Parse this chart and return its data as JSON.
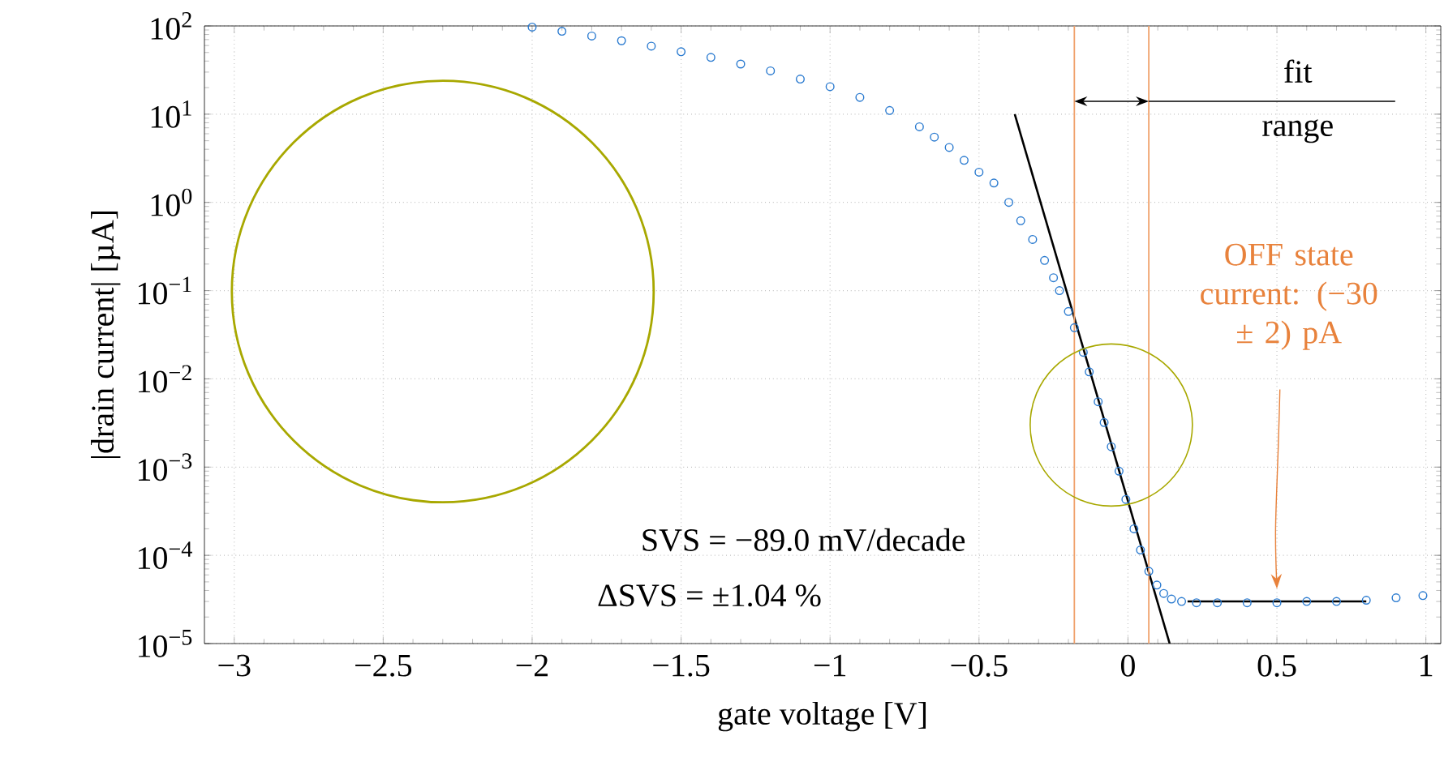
{
  "chart_data": {
    "type": "scatter",
    "xlabel": "gate voltage [V]",
    "ylabel": "|drain current| [µA]",
    "log": "y",
    "grid": true,
    "xlim": [
      -3.1,
      1.05
    ],
    "ylim": [
      1e-05,
      100
    ],
    "xticks": [
      {
        "value": -3,
        "label": "−3"
      },
      {
        "value": -2.5,
        "label": "−2.5"
      },
      {
        "value": -2,
        "label": "−2"
      },
      {
        "value": -1.5,
        "label": "−1.5"
      },
      {
        "value": -1,
        "label": "−1"
      },
      {
        "value": -0.5,
        "label": "−0.5"
      },
      0,
      0.5,
      1
    ],
    "yticks": [
      {
        "value": 1e-05,
        "label": "10$^{−5}$"
      },
      {
        "value": 0.0001,
        "label": "10$^{−4}$"
      },
      {
        "value": 0.001,
        "label": "10$^{−3}$"
      },
      {
        "value": 0.01,
        "label": "10$^{−2}$"
      },
      {
        "value": 0.1,
        "label": "10$^{−1}$"
      },
      {
        "value": 1,
        "label": "10$^{0}$"
      },
      {
        "value": 10,
        "label": "10$^{1}$"
      },
      {
        "value": 100,
        "label": "10$^{2}$"
      }
    ],
    "series": [
      {
        "marker": "circle",
        "color": "#2b7bd0",
        "x": [
          -2.0,
          -1.9,
          -1.8,
          -1.7,
          -1.6,
          -1.5,
          -1.4,
          -1.3,
          -1.2,
          -1.1,
          -1.0,
          -0.9,
          -0.8,
          -0.7,
          -0.65,
          -0.6,
          -0.55,
          -0.5,
          -0.45,
          -0.4,
          -0.36,
          -0.32,
          -0.28,
          -0.25,
          -0.23,
          -0.2,
          -0.18,
          -0.15,
          -0.13,
          -0.1,
          -0.08,
          -0.056,
          -0.03,
          -0.007,
          0.02,
          0.042,
          0.07,
          0.097,
          0.12,
          0.146,
          0.18,
          0.23,
          0.3,
          0.4,
          0.5,
          0.6,
          0.7,
          0.8,
          0.9,
          0.99
        ],
        "values": [
          97,
          87,
          77,
          68,
          59,
          51,
          44,
          37,
          31,
          25,
          20.5,
          15.5,
          11,
          7.2,
          5.5,
          4.2,
          3.0,
          2.2,
          1.66,
          1.0,
          0.62,
          0.38,
          0.22,
          0.14,
          0.1,
          0.058,
          0.038,
          0.02,
          0.012,
          0.0055,
          0.0032,
          0.0017,
          0.0009,
          0.00043,
          0.0002,
          0.000115,
          6.6e-05,
          4.6e-05,
          3.7e-05,
          3.2e-05,
          3e-05,
          2.9e-05,
          2.9e-05,
          2.9e-05,
          2.9e-05,
          3e-05,
          3e-05,
          3.1e-05,
          3.3e-05,
          3.5e-05
        ]
      },
      {
        "type": "line",
        "marker": "none",
        "line_style": "solid",
        "color": "#000000",
        "x": [
          -0.38,
          0.14
        ],
        "values": [
          10,
          1e-05
        ]
      },
      {
        "type": "line",
        "marker": "none",
        "line_style": "solid",
        "color": "#000000",
        "x": [
          0.2,
          0.8
        ],
        "values": [
          3e-05,
          3e-05
        ]
      }
    ],
    "ref_lines": [
      {
        "axis": "x",
        "value": -0.18,
        "color": "#f0a06a"
      },
      {
        "axis": "x",
        "value": 0.07,
        "color": "#f0a06a"
      }
    ],
    "annotations": [
      "fit range",
      "SVS = −89.0 mV/decade",
      "ΔSVS = ±1.04 %",
      "OFF state current: (−30 ± 2) pA"
    ]
  }
}
